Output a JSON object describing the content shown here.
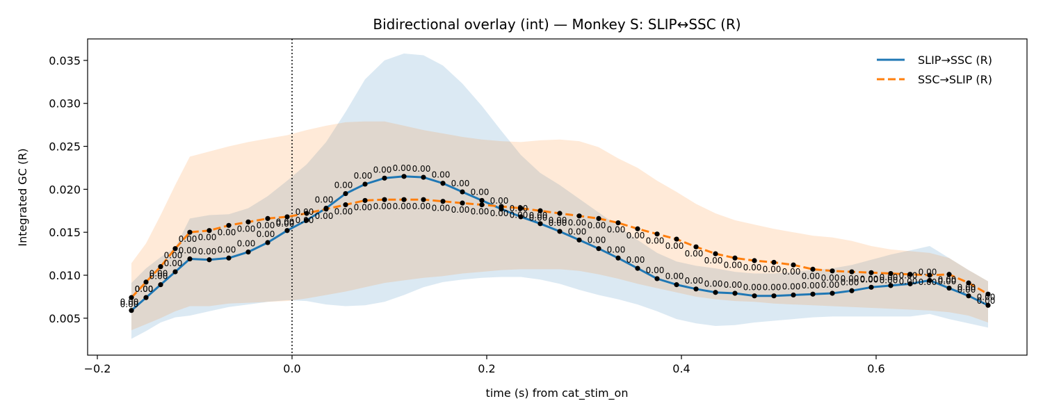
{
  "chart_data": {
    "type": "line",
    "title": "Bidirectional overlay (int) — Monkey S: SLIP↔SSC (R)",
    "xlabel": "time (s) from cat_stim_on",
    "ylabel": "Integrated GC (R)",
    "xlim": [
      -0.21,
      0.755
    ],
    "ylim": [
      0.0007,
      0.0375
    ],
    "xticks": [
      -0.2,
      0.0,
      0.2,
      0.4,
      0.6
    ],
    "xtick_labels": [
      "−0.2",
      "0.0",
      "0.2",
      "0.4",
      "0.6"
    ],
    "yticks": [
      0.005,
      0.01,
      0.015,
      0.02,
      0.025,
      0.03,
      0.035
    ],
    "ytick_labels": [
      "0.005",
      "0.010",
      "0.015",
      "0.020",
      "0.025",
      "0.030",
      "0.035"
    ],
    "event_line_x": 0.0,
    "legend_position": "top-right",
    "point_label_text": "0.00",
    "x": [
      -0.165,
      -0.15,
      -0.135,
      -0.12,
      -0.105,
      -0.085,
      -0.065,
      -0.045,
      -0.025,
      -0.005,
      0.015,
      0.035,
      0.055,
      0.075,
      0.095,
      0.115,
      0.135,
      0.155,
      0.175,
      0.195,
      0.215,
      0.235,
      0.255,
      0.275,
      0.295,
      0.315,
      0.335,
      0.355,
      0.375,
      0.395,
      0.415,
      0.435,
      0.455,
      0.475,
      0.495,
      0.515,
      0.535,
      0.555,
      0.575,
      0.595,
      0.615,
      0.635,
      0.655,
      0.675,
      0.695,
      0.715
    ],
    "series": [
      {
        "name": "SLIP→SSC (R)",
        "color": "#1f77b4",
        "line_style": "solid",
        "values": [
          0.0059,
          0.0074,
          0.0089,
          0.0104,
          0.0119,
          0.0118,
          0.012,
          0.0127,
          0.0138,
          0.0152,
          0.0164,
          0.0178,
          0.0195,
          0.0206,
          0.0213,
          0.0215,
          0.0214,
          0.0207,
          0.0197,
          0.0187,
          0.0177,
          0.0168,
          0.016,
          0.0151,
          0.0141,
          0.0131,
          0.012,
          0.0108,
          0.0096,
          0.0089,
          0.0084,
          0.008,
          0.0079,
          0.0076,
          0.0076,
          0.0077,
          0.0078,
          0.0079,
          0.0082,
          0.0086,
          0.0088,
          0.009,
          0.0094,
          0.0085,
          0.0076,
          0.0065
        ],
        "band_lower": [
          0.0026,
          0.0035,
          0.0045,
          0.0051,
          0.0053,
          0.0058,
          0.0063,
          0.0066,
          0.0069,
          0.0071,
          0.007,
          0.0066,
          0.0064,
          0.0065,
          0.0069,
          0.0077,
          0.0086,
          0.0092,
          0.0095,
          0.0097,
          0.0098,
          0.0098,
          0.0095,
          0.009,
          0.0083,
          0.0077,
          0.0072,
          0.0066,
          0.0058,
          0.0049,
          0.0044,
          0.0041,
          0.0042,
          0.0045,
          0.0047,
          0.0049,
          0.0051,
          0.0052,
          0.0052,
          0.0052,
          0.0052,
          0.0052,
          0.0055,
          0.0049,
          0.0044,
          0.0039
        ],
        "band_upper": [
          0.0091,
          0.0108,
          0.0121,
          0.0132,
          0.0166,
          0.017,
          0.0171,
          0.0178,
          0.0192,
          0.021,
          0.0229,
          0.0255,
          0.029,
          0.0328,
          0.035,
          0.0358,
          0.0356,
          0.0344,
          0.0323,
          0.0297,
          0.0268,
          0.024,
          0.0219,
          0.0205,
          0.0189,
          0.0173,
          0.0157,
          0.0141,
          0.0126,
          0.0116,
          0.0111,
          0.0108,
          0.0104,
          0.0102,
          0.0102,
          0.0104,
          0.0106,
          0.0108,
          0.0112,
          0.0118,
          0.0124,
          0.0129,
          0.0134,
          0.012,
          0.0106,
          0.0093
        ]
      },
      {
        "name": "SSC→SLIP (R)",
        "color": "#ff7f0e",
        "line_style": "dashed",
        "values": [
          0.0074,
          0.0092,
          0.011,
          0.0131,
          0.015,
          0.0152,
          0.0158,
          0.0162,
          0.0166,
          0.0168,
          0.0172,
          0.0177,
          0.0182,
          0.0187,
          0.0188,
          0.0188,
          0.0188,
          0.0186,
          0.0184,
          0.0182,
          0.018,
          0.0178,
          0.0175,
          0.0172,
          0.0169,
          0.0166,
          0.0161,
          0.0154,
          0.0148,
          0.0142,
          0.0133,
          0.0125,
          0.012,
          0.0117,
          0.0115,
          0.0112,
          0.0107,
          0.0105,
          0.0104,
          0.0103,
          0.0102,
          0.0101,
          0.01,
          0.0101,
          0.0091,
          0.0078
        ],
        "band_lower": [
          0.0036,
          0.0043,
          0.005,
          0.0058,
          0.0064,
          0.0064,
          0.0067,
          0.0068,
          0.0069,
          0.007,
          0.0073,
          0.0077,
          0.0081,
          0.0086,
          0.0091,
          0.0094,
          0.0097,
          0.0099,
          0.0102,
          0.0104,
          0.0106,
          0.0107,
          0.0107,
          0.0107,
          0.0105,
          0.0101,
          0.0096,
          0.009,
          0.0085,
          0.008,
          0.0075,
          0.0072,
          0.007,
          0.0069,
          0.0067,
          0.0066,
          0.0065,
          0.0064,
          0.0063,
          0.0062,
          0.0061,
          0.006,
          0.0059,
          0.0057,
          0.0053,
          0.0045
        ],
        "band_upper": [
          0.0114,
          0.0137,
          0.017,
          0.0205,
          0.0238,
          0.0244,
          0.025,
          0.0255,
          0.0259,
          0.0263,
          0.0269,
          0.0274,
          0.0278,
          0.0279,
          0.0279,
          0.0274,
          0.0269,
          0.0265,
          0.0261,
          0.0258,
          0.0256,
          0.0255,
          0.0257,
          0.0258,
          0.0256,
          0.0249,
          0.0236,
          0.0225,
          0.021,
          0.0197,
          0.0183,
          0.0172,
          0.0164,
          0.0159,
          0.0154,
          0.015,
          0.0146,
          0.0144,
          0.014,
          0.0134,
          0.013,
          0.0128,
          0.0126,
          0.012,
          0.0106,
          0.0093
        ]
      }
    ]
  }
}
